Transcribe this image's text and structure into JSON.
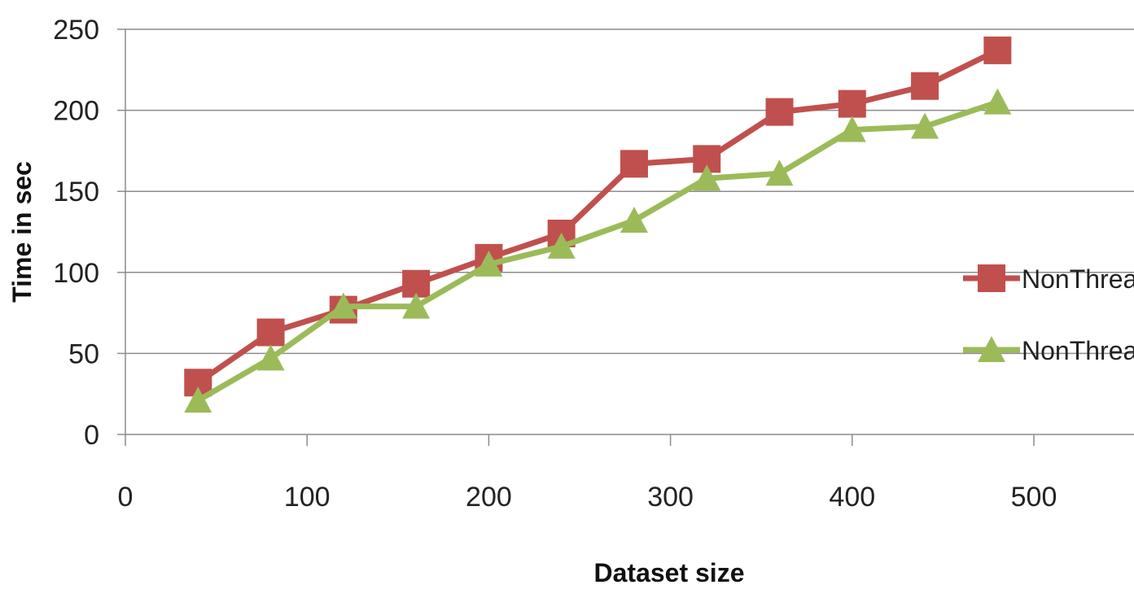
{
  "chart_data": {
    "type": "line",
    "title": "",
    "xlabel": "Dataset size",
    "ylabel": "Time in sec",
    "xlim": [
      0,
      560
    ],
    "ylim": [
      0,
      250
    ],
    "xticks": [
      0,
      100,
      200,
      300,
      400,
      500
    ],
    "yticks": [
      0,
      50,
      100,
      150,
      200,
      250
    ],
    "grid": "horizontal",
    "legend_position": "right",
    "x": [
      40,
      80,
      120,
      160,
      200,
      240,
      280,
      320,
      360,
      400,
      440,
      480
    ],
    "series": [
      {
        "name": "NonThrea",
        "color": "#c0504d",
        "marker": "square",
        "values": [
          32,
          63,
          77,
          93,
          109,
          124,
          167,
          170,
          199,
          204,
          215,
          237
        ]
      },
      {
        "name": "NonThrea",
        "color": "#9bbb59",
        "marker": "triangle",
        "values": [
          21,
          47,
          79,
          79,
          105,
          116,
          132,
          158,
          161,
          188,
          190,
          205
        ]
      }
    ]
  }
}
